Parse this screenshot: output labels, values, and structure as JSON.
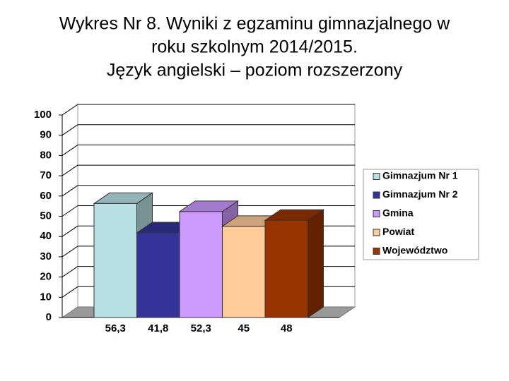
{
  "chart_data": {
    "type": "bar3d",
    "title": [
      "Wykres Nr 8. Wyniki z egzaminu gimnazjalnego   w",
      "roku szkolnym 2014/2015.",
      "Język angielski – poziom rozszerzony"
    ],
    "series": [
      {
        "name": "Gimnazjum Nr 1",
        "color": "#b8e0e4",
        "values": [
          56.3
        ],
        "value_labels": [
          "56,3"
        ]
      },
      {
        "name": "Gimnazjum Nr 2",
        "color": "#333399",
        "values": [
          41.8
        ],
        "value_labels": [
          "41,8"
        ]
      },
      {
        "name": "Gmina",
        "color": "#cc99ff",
        "values": [
          52.3
        ],
        "value_labels": [
          "52,3"
        ]
      },
      {
        "name": "Powiat",
        "color": "#ffcc99",
        "values": [
          45
        ],
        "value_labels": [
          "45"
        ]
      },
      {
        "name": "Województwo",
        "color": "#993300",
        "values": [
          48
        ],
        "value_labels": [
          "48"
        ]
      }
    ],
    "ylim": [
      0,
      100
    ],
    "yticks": [
      0,
      10,
      20,
      30,
      40,
      50,
      60,
      70,
      80,
      90,
      100
    ],
    "grid": true,
    "legend": "right"
  }
}
